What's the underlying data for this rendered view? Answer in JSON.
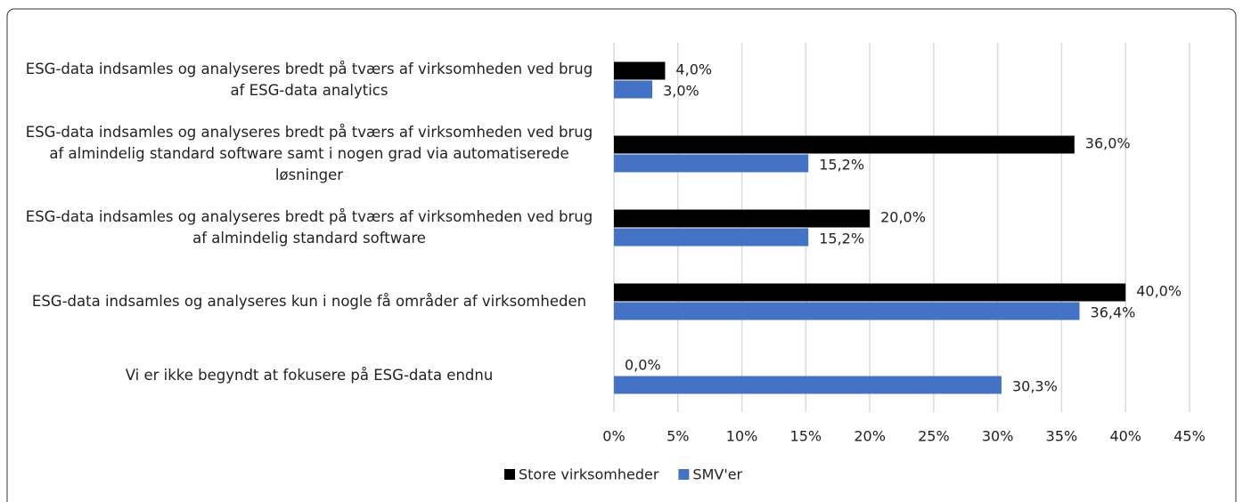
{
  "chart_data": {
    "type": "bar",
    "orientation": "horizontal",
    "categories": [
      "ESG-data indsamles og analyseres bredt på tværs af virksomheden ved brug af ESG-data analytics",
      "ESG-data indsamles og analyseres bredt på tværs af virksomheden ved brug af almindelig standard software samt i nogen grad via automatiserede løsninger",
      "ESG-data indsamles og analyseres bredt på tværs af virksomheden ved brug af almindelig standard software",
      "ESG-data indsamles og analyseres kun i nogle få områder af virksomheden",
      "Vi er ikke begyndt at fokusere på ESG-data endnu"
    ],
    "series": [
      {
        "name": "Store virksomheder",
        "color": "#000000",
        "values": [
          4.0,
          36.0,
          20.0,
          40.0,
          0.0
        ],
        "value_labels": [
          "4,0%",
          "36,0%",
          "20,0%",
          "40,0%",
          "0,0%"
        ]
      },
      {
        "name": "SMV'er",
        "color": "#4472c4",
        "values": [
          3.0,
          15.2,
          15.2,
          36.4,
          30.3
        ],
        "value_labels": [
          "3,0%",
          "15,2%",
          "15,2%",
          "36,4%",
          "30,3%"
        ]
      }
    ],
    "xlim": [
      0,
      45
    ],
    "xticks": [
      {
        "value": 0,
        "label": "0%"
      },
      {
        "value": 5,
        "label": "5%"
      },
      {
        "value": 10,
        "label": "10%"
      },
      {
        "value": 15,
        "label": "15%"
      },
      {
        "value": 20,
        "label": "20%"
      },
      {
        "value": 25,
        "label": "25%"
      },
      {
        "value": 30,
        "label": "30%"
      },
      {
        "value": 35,
        "label": "35%"
      },
      {
        "value": 40,
        "label": "40%"
      },
      {
        "value": 45,
        "label": "45%"
      }
    ],
    "grid": true,
    "legend": "bottom"
  }
}
